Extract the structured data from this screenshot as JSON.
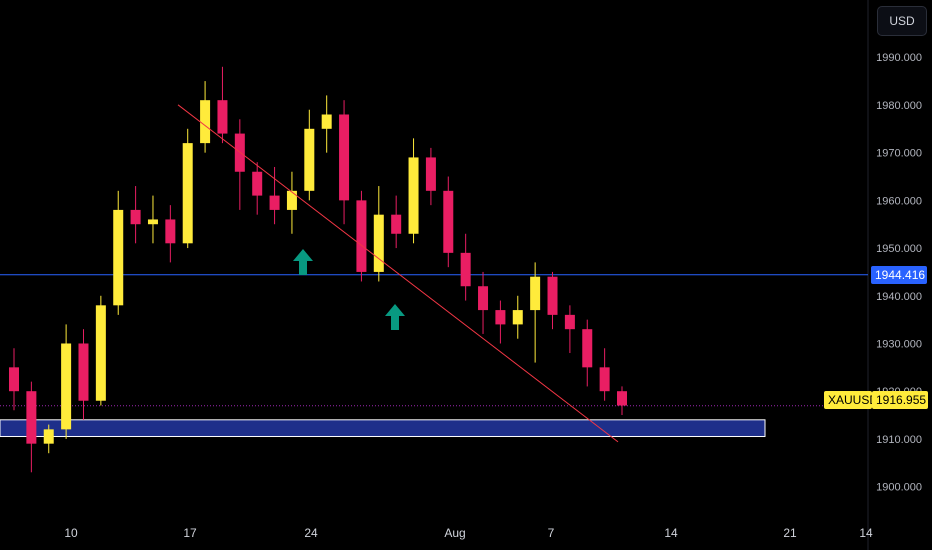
{
  "currency_button": "USD",
  "symbol": "XAUUSD",
  "last_price_label": "1916.955",
  "hline_price_label": "1944.416",
  "colors": {
    "background": "#000000",
    "up_candle": "#ffeb3b",
    "down_candle": "#e91e63",
    "horizontal_line": "#2962ff",
    "trendline": "#f23645",
    "zone_fill": "#1e2f8a",
    "zone_border": "#ffffff",
    "arrow": "#089981",
    "last_price_line": "#9c27b0"
  },
  "chart_data": {
    "type": "candlestick",
    "ylim": [
      1893,
      2002
    ],
    "y_ticks": [
      "1990.000",
      "1980.000",
      "1970.000",
      "1960.000",
      "1950.000",
      "1940.000",
      "1930.000",
      "1920.000",
      "1910.000",
      "1900.000"
    ],
    "x_ticks": [
      "10",
      "17",
      "24",
      "Aug",
      "7",
      "14",
      "21",
      "14"
    ],
    "last_price": 1916.955,
    "horizontal_line": 1944.416,
    "support_zone": [
      1910.5,
      1914.0
    ],
    "trendline": [
      [
        1,
        1975.0
      ],
      [
        5,
        1910.0
      ]
    ],
    "arrows_up": [
      1,
      1.8
    ],
    "candles": [
      {
        "o": 1925,
        "h": 1929,
        "l": 1916,
        "c": 1920
      },
      {
        "o": 1920,
        "h": 1922,
        "l": 1903,
        "c": 1909
      },
      {
        "o": 1909,
        "h": 1913,
        "l": 1907,
        "c": 1912
      },
      {
        "o": 1912,
        "h": 1934,
        "l": 1910,
        "c": 1930
      },
      {
        "o": 1930,
        "h": 1933,
        "l": 1914,
        "c": 1918
      },
      {
        "o": 1918,
        "h": 1940,
        "l": 1917,
        "c": 1938
      },
      {
        "o": 1938,
        "h": 1962,
        "l": 1936,
        "c": 1958
      },
      {
        "o": 1958,
        "h": 1963,
        "l": 1951,
        "c": 1955
      },
      {
        "o": 1955,
        "h": 1961,
        "l": 1951,
        "c": 1956
      },
      {
        "o": 1956,
        "h": 1959,
        "l": 1947,
        "c": 1951
      },
      {
        "o": 1951,
        "h": 1975,
        "l": 1950,
        "c": 1972
      },
      {
        "o": 1972,
        "h": 1985,
        "l": 1970,
        "c": 1981
      },
      {
        "o": 1981,
        "h": 1988,
        "l": 1972,
        "c": 1974
      },
      {
        "o": 1974,
        "h": 1977,
        "l": 1958,
        "c": 1966
      },
      {
        "o": 1966,
        "h": 1968,
        "l": 1957,
        "c": 1961
      },
      {
        "o": 1961,
        "h": 1967,
        "l": 1955,
        "c": 1958
      },
      {
        "o": 1958,
        "h": 1966,
        "l": 1953,
        "c": 1962
      },
      {
        "o": 1962,
        "h": 1979,
        "l": 1960,
        "c": 1975
      },
      {
        "o": 1975,
        "h": 1982,
        "l": 1970,
        "c": 1978
      },
      {
        "o": 1978,
        "h": 1981,
        "l": 1955,
        "c": 1960
      },
      {
        "o": 1960,
        "h": 1962,
        "l": 1943,
        "c": 1945
      },
      {
        "o": 1945,
        "h": 1963,
        "l": 1943,
        "c": 1957
      },
      {
        "o": 1957,
        "h": 1961,
        "l": 1950,
        "c": 1953
      },
      {
        "o": 1953,
        "h": 1973,
        "l": 1951,
        "c": 1969
      },
      {
        "o": 1969,
        "h": 1971,
        "l": 1959,
        "c": 1962
      },
      {
        "o": 1962,
        "h": 1965,
        "l": 1946,
        "c": 1949
      },
      {
        "o": 1949,
        "h": 1953,
        "l": 1939,
        "c": 1942
      },
      {
        "o": 1942,
        "h": 1945,
        "l": 1932,
        "c": 1937
      },
      {
        "o": 1937,
        "h": 1939,
        "l": 1930,
        "c": 1934
      },
      {
        "o": 1934,
        "h": 1940,
        "l": 1931,
        "c": 1937
      },
      {
        "o": 1937,
        "h": 1947,
        "l": 1926,
        "c": 1944
      },
      {
        "o": 1944,
        "h": 1945,
        "l": 1933,
        "c": 1936
      },
      {
        "o": 1936,
        "h": 1938,
        "l": 1928,
        "c": 1933
      },
      {
        "o": 1933,
        "h": 1935,
        "l": 1921,
        "c": 1925
      },
      {
        "o": 1925,
        "h": 1929,
        "l": 1918,
        "c": 1920
      },
      {
        "o": 1920,
        "h": 1921,
        "l": 1915,
        "c": 1917
      }
    ]
  }
}
